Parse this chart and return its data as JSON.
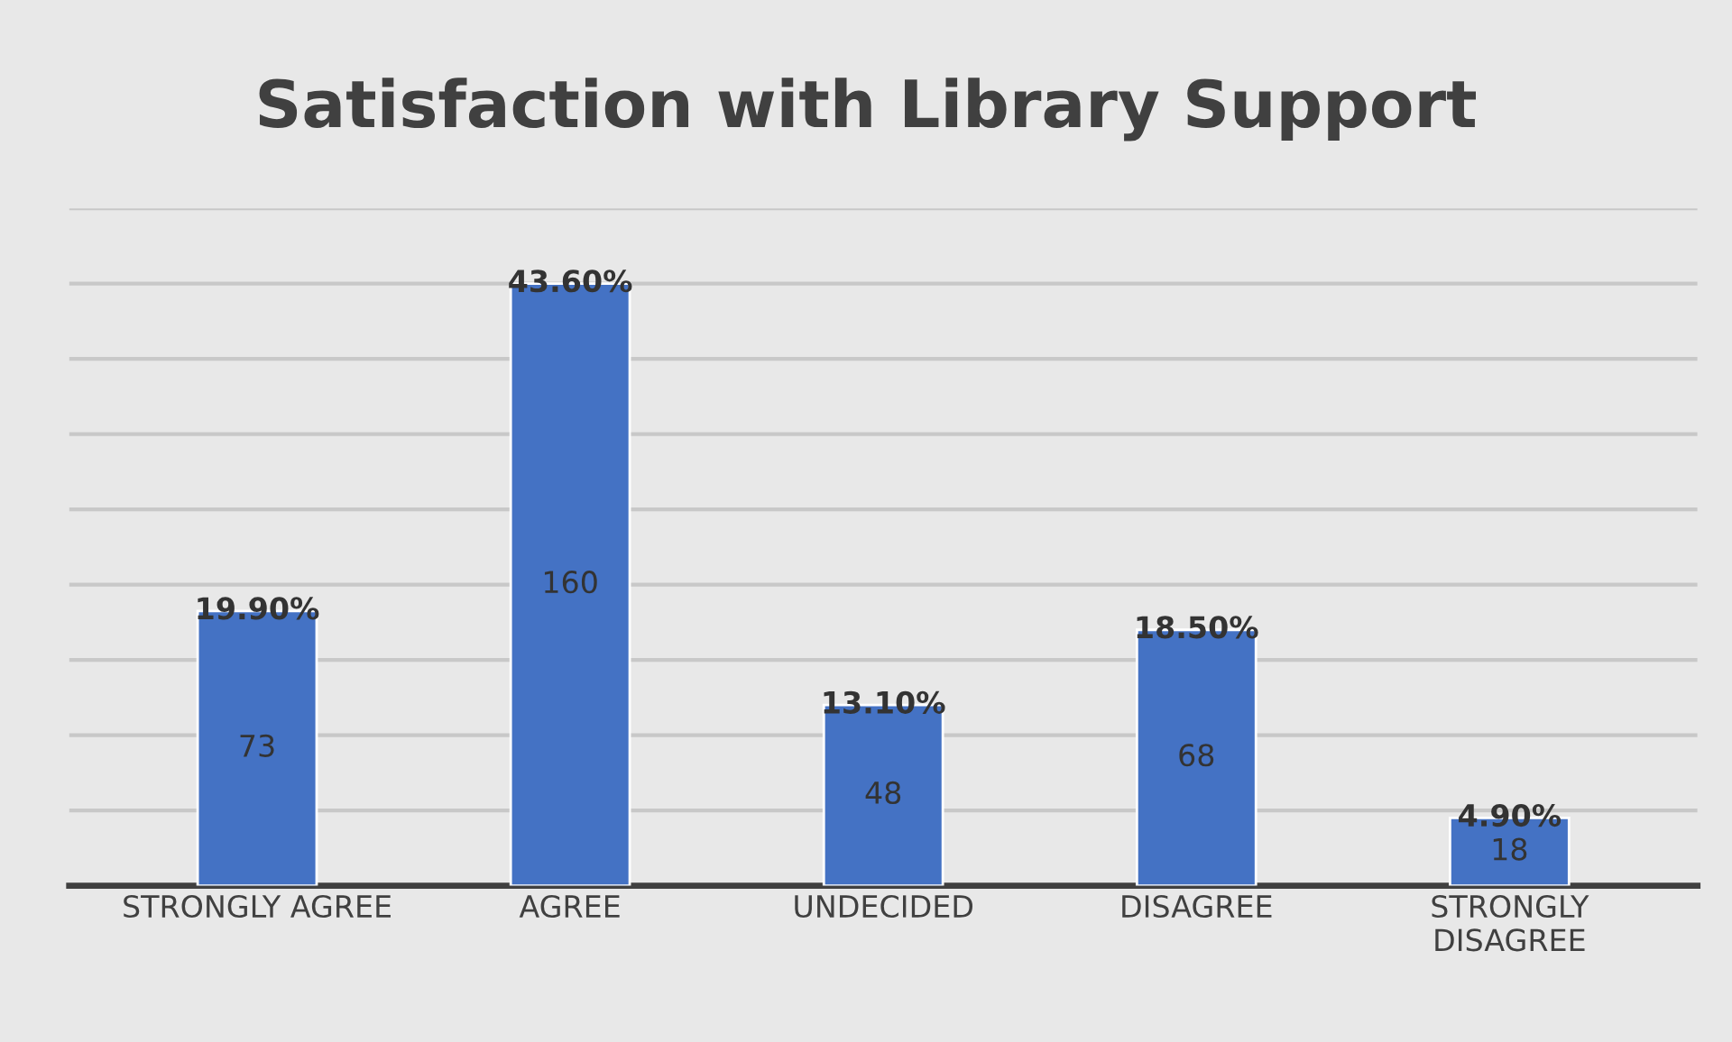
{
  "chart_data": {
    "type": "bar",
    "title": "Satisfaction with Library Support",
    "categories": [
      "STRONGLY AGREE",
      "AGREE",
      "UNDECIDED",
      "DISAGREE",
      "STRONGLY\nDISAGREE"
    ],
    "values": [
      73,
      160,
      48,
      68,
      18
    ],
    "color": "#4472c4",
    "data_labels": true,
    "annotations": [
      {
        "text": "19.90%",
        "x": "STRONGLY AGREE",
        "y": 73
      },
      {
        "text": "43.60%",
        "x": "AGREE",
        "y": 160
      },
      {
        "text": "13.10%",
        "x": "UNDECIDED",
        "y": 48
      },
      {
        "text": "18.50%",
        "x": "DISAGREE",
        "y": 68
      },
      {
        "text": "4.90%",
        "x": "STRONGLY\nDISAGREE",
        "y": 18
      }
    ],
    "ylim": [
      0,
      180
    ],
    "yticks": [
      {
        "value": 0,
        "label": null
      },
      {
        "value": 20,
        "label": null
      },
      {
        "value": 40,
        "label": null
      },
      {
        "value": 60,
        "label": null
      },
      {
        "value": 80,
        "label": null
      },
      {
        "value": 100,
        "label": null
      },
      {
        "value": 120,
        "label": null
      },
      {
        "value": 140,
        "label": null
      },
      {
        "value": 160,
        "label": null
      },
      {
        "value": 180,
        "label": null
      }
    ],
    "grid": "y",
    "tick_labels": "x"
  }
}
